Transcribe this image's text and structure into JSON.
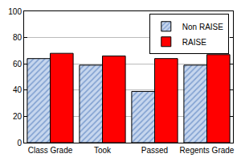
{
  "chart_data": {
    "type": "bar",
    "categories": [
      "Class Grade",
      "Took",
      "Passed",
      "Regents Grade"
    ],
    "series": [
      {
        "name": "Non RAISE",
        "color": "#c6d6ee",
        "values": [
          64,
          59,
          39,
          59
        ]
      },
      {
        "name": "RAISE",
        "color": "#ff0000",
        "values": [
          68,
          66,
          64,
          67
        ]
      }
    ],
    "ylim": [
      0,
      100
    ],
    "yticks": [
      0,
      20,
      40,
      60,
      80,
      100
    ],
    "grid": true,
    "legend": "upper right"
  }
}
